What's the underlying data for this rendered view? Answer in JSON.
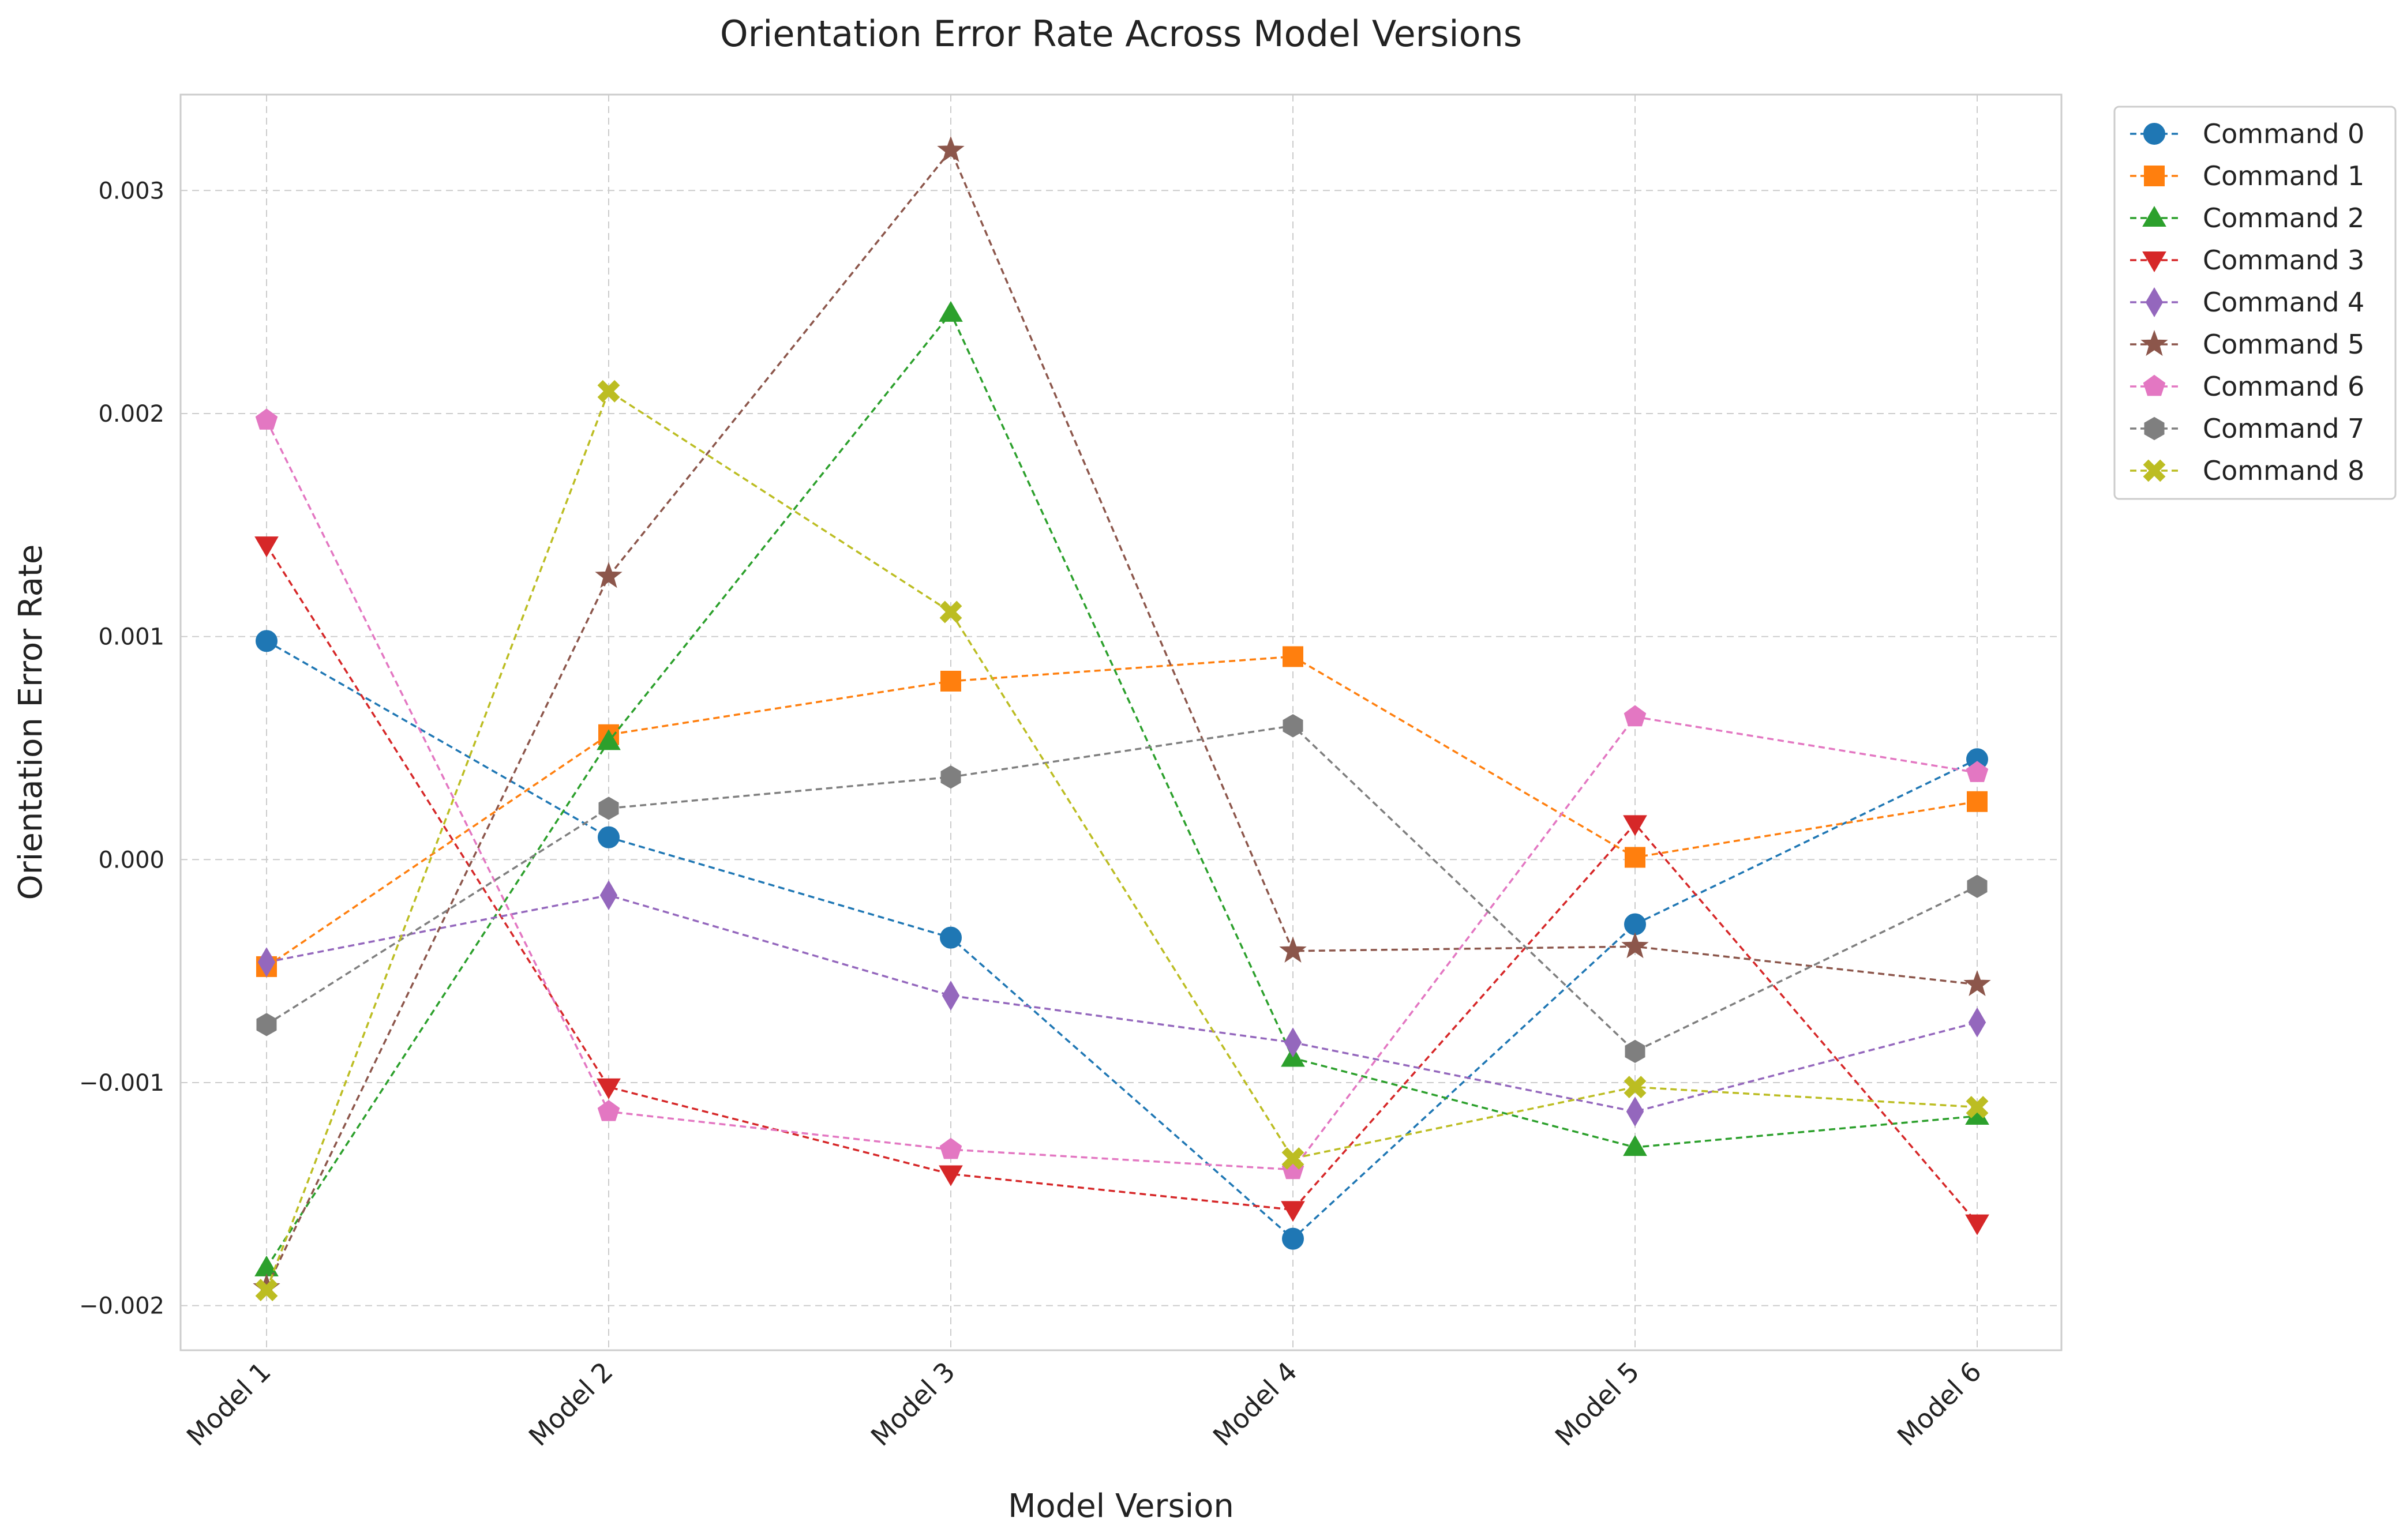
{
  "chart_data": {
    "type": "line",
    "title": "Orientation Error Rate Across Model Versions",
    "xlabel": "Model Version",
    "ylabel": "Orientation Error Rate",
    "categories": [
      "Model 1",
      "Model 2",
      "Model 3",
      "Model 4",
      "Model 5",
      "Model 6"
    ],
    "ylim": [
      -0.0022,
      0.00343
    ],
    "yticks": [
      -0.002,
      -0.001,
      0.0,
      0.001,
      0.002,
      0.003
    ],
    "ytick_labels": [
      "−0.002",
      "−0.001",
      "0.000",
      "0.001",
      "0.002",
      "0.003"
    ],
    "grid": true,
    "legend_position": "outside-top-right",
    "line_style": "dashed",
    "series": [
      {
        "name": "Command 0",
        "color": "#1f77b4",
        "marker": "circle",
        "values": [
          0.00098,
          0.0001,
          -0.00035,
          -0.0017,
          -0.00029,
          0.00045
        ]
      },
      {
        "name": "Command 1",
        "color": "#ff7f0e",
        "marker": "square",
        "values": [
          -0.00048,
          0.00056,
          0.0008,
          0.00091,
          1e-05,
          0.00026
        ]
      },
      {
        "name": "Command 2",
        "color": "#2ca02c",
        "marker": "triangle-up",
        "values": [
          -0.00183,
          0.00053,
          0.00245,
          -0.00089,
          -0.00129,
          -0.00115
        ]
      },
      {
        "name": "Command 3",
        "color": "#d62728",
        "marker": "triangle-down",
        "values": [
          0.00141,
          -0.00102,
          -0.00141,
          -0.00157,
          0.00016,
          -0.00163
        ]
      },
      {
        "name": "Command 4",
        "color": "#9467bd",
        "marker": "diamond",
        "values": [
          -0.00046,
          -0.00016,
          -0.00061,
          -0.00082,
          -0.00113,
          -0.00073
        ]
      },
      {
        "name": "Command 5",
        "color": "#8c564b",
        "marker": "star",
        "values": [
          -0.00192,
          0.00127,
          0.00318,
          -0.00041,
          -0.00039,
          -0.00056
        ]
      },
      {
        "name": "Command 6",
        "color": "#e377c2",
        "marker": "pentagon",
        "values": [
          0.00197,
          -0.00113,
          -0.0013,
          -0.00139,
          0.00064,
          0.00039
        ]
      },
      {
        "name": "Command 7",
        "color": "#7f7f7f",
        "marker": "hexagon",
        "values": [
          -0.00074,
          0.00023,
          0.00037,
          0.0006,
          -0.00086,
          -0.00012
        ]
      },
      {
        "name": "Command 8",
        "color": "#bcbd22",
        "marker": "x-filled",
        "values": [
          -0.00193,
          0.0021,
          0.00111,
          -0.00134,
          -0.00102,
          -0.00111
        ]
      }
    ]
  }
}
